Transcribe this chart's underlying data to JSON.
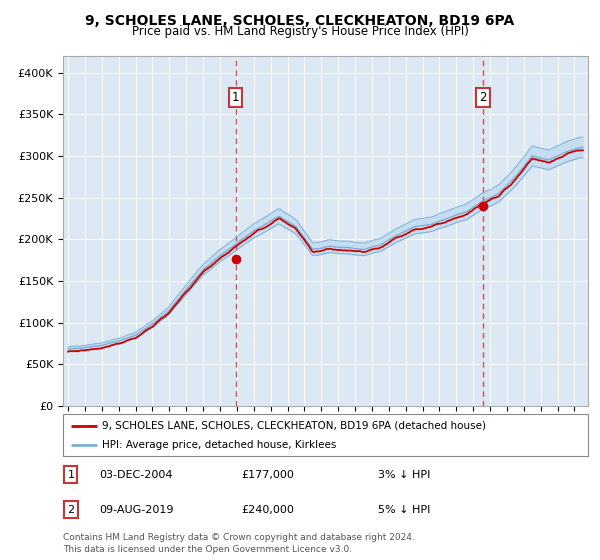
{
  "title1": "9, SCHOLES LANE, SCHOLES, CLECKHEATON, BD19 6PA",
  "title2": "Price paid vs. HM Land Registry's House Price Index (HPI)",
  "bg_color": "#dce9f5",
  "hpi_color": "#7aafd4",
  "hpi_band_color": "#c5ddf0",
  "price_color": "#cc0000",
  "marker_color": "#cc0000",
  "vline_color": "#cc3333",
  "sale1_date_num": 2004.92,
  "sale1_price": 177000,
  "sale1_label": "03-DEC-2004",
  "sale1_hpi_pct": "3% ↓ HPI",
  "sale2_date_num": 2019.58,
  "sale2_price": 240000,
  "sale2_label": "09-AUG-2019",
  "sale2_hpi_pct": "5% ↓ HPI",
  "legend_line1": "9, SCHOLES LANE, SCHOLES, CLECKHEATON, BD19 6PA (detached house)",
  "legend_line2": "HPI: Average price, detached house, Kirklees",
  "footer": "Contains HM Land Registry data © Crown copyright and database right 2024.\nThis data is licensed under the Open Government Licence v3.0.",
  "ylim": [
    0,
    420000
  ],
  "xlim_start": 1994.7,
  "xlim_end": 2025.8,
  "yticks": [
    0,
    50000,
    100000,
    150000,
    200000,
    250000,
    300000,
    350000,
    400000
  ],
  "ylabels": [
    "£0",
    "£50K",
    "£100K",
    "£150K",
    "£200K",
    "£250K",
    "£300K",
    "£350K",
    "£400K"
  ]
}
